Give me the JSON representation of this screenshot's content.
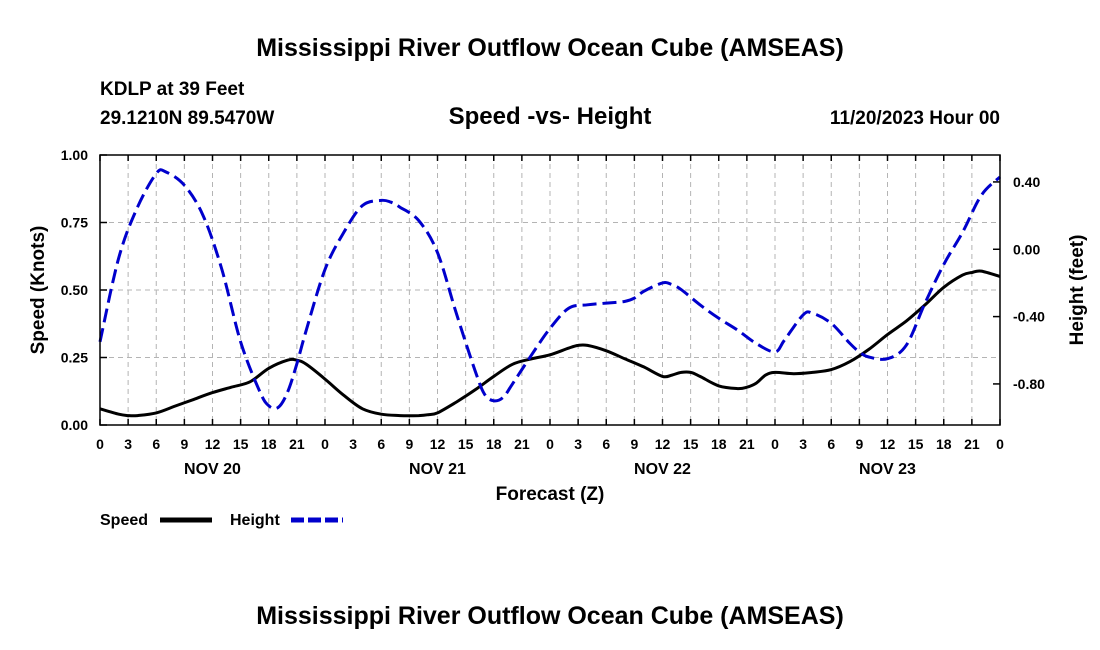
{
  "chart_data": {
    "type": "line",
    "title": "Mississippi River Outflow Ocean Cube (AMSEAS)",
    "bottom_title": "Mississippi River Outflow Ocean Cube (AMSEAS)",
    "subtitle": "Speed -vs- Height",
    "station": "KDLP at 39 Feet",
    "coords": "29.1210N  89.5470W",
    "datetime": "11/20/2023 Hour 00",
    "xlabel": "Forecast (Z)",
    "ylabel_left": "Speed (Knots)",
    "ylabel_right": "Height (feet)",
    "x_range": [
      0,
      96
    ],
    "ylim_left": [
      0,
      1.0
    ],
    "ylim_right": [
      -1.044,
      0.56
    ],
    "x_ticks": [
      {
        "x": 0,
        "label": "0"
      },
      {
        "x": 3,
        "label": "3"
      },
      {
        "x": 6,
        "label": "6"
      },
      {
        "x": 9,
        "label": "9"
      },
      {
        "x": 12,
        "label": "12"
      },
      {
        "x": 15,
        "label": "15"
      },
      {
        "x": 18,
        "label": "18"
      },
      {
        "x": 21,
        "label": "21"
      },
      {
        "x": 24,
        "label": "0"
      },
      {
        "x": 27,
        "label": "3"
      },
      {
        "x": 30,
        "label": "6"
      },
      {
        "x": 33,
        "label": "9"
      },
      {
        "x": 36,
        "label": "12"
      },
      {
        "x": 39,
        "label": "15"
      },
      {
        "x": 42,
        "label": "18"
      },
      {
        "x": 45,
        "label": "21"
      },
      {
        "x": 48,
        "label": "0"
      },
      {
        "x": 51,
        "label": "3"
      },
      {
        "x": 54,
        "label": "6"
      },
      {
        "x": 57,
        "label": "9"
      },
      {
        "x": 60,
        "label": "12"
      },
      {
        "x": 63,
        "label": "15"
      },
      {
        "x": 66,
        "label": "18"
      },
      {
        "x": 69,
        "label": "21"
      },
      {
        "x": 72,
        "label": "0"
      },
      {
        "x": 75,
        "label": "3"
      },
      {
        "x": 78,
        "label": "6"
      },
      {
        "x": 81,
        "label": "9"
      },
      {
        "x": 84,
        "label": "12"
      },
      {
        "x": 87,
        "label": "15"
      },
      {
        "x": 90,
        "label": "18"
      },
      {
        "x": 93,
        "label": "21"
      },
      {
        "x": 96,
        "label": "0"
      }
    ],
    "day_labels": [
      {
        "x": 12,
        "label": "NOV 20"
      },
      {
        "x": 36,
        "label": "NOV 21"
      },
      {
        "x": 60,
        "label": "NOV 22"
      },
      {
        "x": 84,
        "label": "NOV 23"
      }
    ],
    "left_ticks": [
      {
        "value": 0.0,
        "label": "0.00"
      },
      {
        "value": 0.25,
        "label": "0.25"
      },
      {
        "value": 0.5,
        "label": "0.50"
      },
      {
        "value": 0.75,
        "label": "0.75"
      },
      {
        "value": 1.0,
        "label": "1.00"
      }
    ],
    "right_ticks": [
      {
        "value": 0.4,
        "label": "0.40"
      },
      {
        "value": 0.0,
        "label": "0.00"
      },
      {
        "value": -0.4,
        "label": "-0.40"
      },
      {
        "value": -0.8,
        "label": "-0.80"
      }
    ],
    "grid": true,
    "series": [
      {
        "name": "Speed",
        "axis": "left",
        "color": "#000000",
        "style": "solid",
        "x": [
          0,
          2,
          3,
          4,
          6,
          8,
          10,
          12,
          14,
          16,
          18,
          20,
          21,
          22,
          24,
          26,
          28,
          30,
          32,
          34,
          35,
          36,
          38,
          40,
          42,
          44,
          46,
          48,
          50,
          51,
          52,
          54,
          56,
          58,
          60,
          61,
          62,
          63,
          64,
          66,
          68,
          69,
          70,
          71,
          72,
          74,
          76,
          78,
          80,
          82,
          84,
          86,
          88,
          90,
          92,
          93,
          94,
          96
        ],
        "values": [
          0.06,
          0.04,
          0.035,
          0.035,
          0.045,
          0.07,
          0.095,
          0.12,
          0.14,
          0.16,
          0.21,
          0.24,
          0.24,
          0.225,
          0.17,
          0.11,
          0.06,
          0.04,
          0.035,
          0.035,
          0.038,
          0.045,
          0.085,
          0.13,
          0.18,
          0.225,
          0.245,
          0.26,
          0.285,
          0.295,
          0.295,
          0.275,
          0.245,
          0.215,
          0.18,
          0.185,
          0.195,
          0.195,
          0.18,
          0.145,
          0.135,
          0.14,
          0.155,
          0.185,
          0.195,
          0.19,
          0.195,
          0.205,
          0.235,
          0.28,
          0.335,
          0.385,
          0.445,
          0.51,
          0.555,
          0.565,
          0.57,
          0.55
        ]
      },
      {
        "name": "Height",
        "axis": "right",
        "color": "#0000cc",
        "style": "dashed",
        "x": [
          0,
          2,
          4,
          6,
          7,
          9,
          11,
          13,
          15,
          17,
          18,
          19,
          20,
          21,
          22,
          24,
          26,
          28,
          30,
          31,
          32,
          34,
          36,
          38,
          40,
          41,
          42,
          43,
          44,
          46,
          48,
          50,
          52,
          54,
          56,
          57,
          58,
          60,
          61,
          62,
          64,
          66,
          68,
          70,
          72,
          73,
          75,
          76,
          78,
          80,
          81,
          82,
          84,
          86,
          88,
          90,
          92,
          94,
          96
        ],
        "values": [
          -0.55,
          -0.05,
          0.25,
          0.45,
          0.46,
          0.38,
          0.2,
          -0.12,
          -0.55,
          -0.84,
          -0.93,
          -0.94,
          -0.85,
          -0.68,
          -0.48,
          -0.12,
          0.1,
          0.26,
          0.29,
          0.28,
          0.25,
          0.17,
          -0.02,
          -0.38,
          -0.72,
          -0.86,
          -0.9,
          -0.88,
          -0.8,
          -0.63,
          -0.47,
          -0.35,
          -0.33,
          -0.32,
          -0.31,
          -0.29,
          -0.25,
          -0.2,
          -0.21,
          -0.24,
          -0.33,
          -0.41,
          -0.48,
          -0.56,
          -0.61,
          -0.54,
          -0.39,
          -0.38,
          -0.44,
          -0.56,
          -0.61,
          -0.64,
          -0.65,
          -0.57,
          -0.32,
          -0.09,
          0.1,
          0.32,
          0.43
        ]
      }
    ],
    "legend": [
      {
        "label": "Speed",
        "color": "#000000",
        "style": "solid"
      },
      {
        "label": "Height",
        "color": "#0000cc",
        "style": "dashed"
      }
    ],
    "legend_position": "bottom-left"
  }
}
